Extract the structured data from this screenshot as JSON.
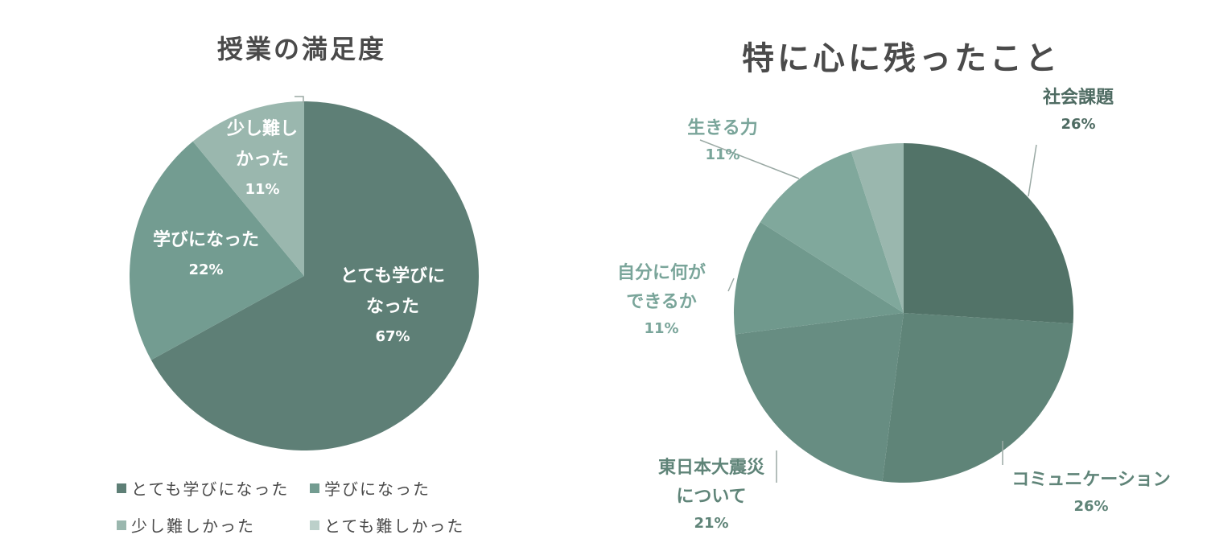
{
  "chart_data": [
    {
      "type": "pie",
      "title": "授業の満足度",
      "slices": [
        {
          "lines": [
            "とても学びに",
            "なった"
          ],
          "pct": "67%",
          "value": 67,
          "color": "#5e7f76"
        },
        {
          "lines": [
            "学びになった"
          ],
          "pct": "22%",
          "value": 22,
          "color": "#739c91"
        },
        {
          "lines": [
            "少し難し",
            "かった"
          ],
          "pct": "11%",
          "value": 11,
          "color": "#9ab7ae"
        },
        {
          "lines": [],
          "pct": "",
          "value": 0,
          "color": "#bcd0ca"
        }
      ],
      "legend": {
        "placement": "bottom",
        "items": [
          "とても学びになった",
          "学びになった",
          "少し難しかった",
          "とても難しかった"
        ]
      }
    },
    {
      "type": "pie",
      "title": "特に心に残ったこと",
      "slices": [
        {
          "lines": [
            "社会課題"
          ],
          "pct": "26%",
          "value": 26,
          "color": "#527368"
        },
        {
          "lines": [
            "コミュニケーション"
          ],
          "pct": "26%",
          "value": 26,
          "color": "#5f8478"
        },
        {
          "lines": [
            "東日本大震災",
            "について"
          ],
          "pct": "21%",
          "value": 21,
          "color": "#678d82"
        },
        {
          "lines": [
            "自分に何が",
            "できるか"
          ],
          "pct": "11%",
          "value": 11,
          "color": "#70998d"
        },
        {
          "lines": [
            "生きる力"
          ],
          "pct": "11%",
          "value": 11,
          "color": "#80a89c"
        },
        {
          "lines": [],
          "pct": "",
          "value": 5,
          "color": "#9ab7ae"
        }
      ]
    }
  ]
}
